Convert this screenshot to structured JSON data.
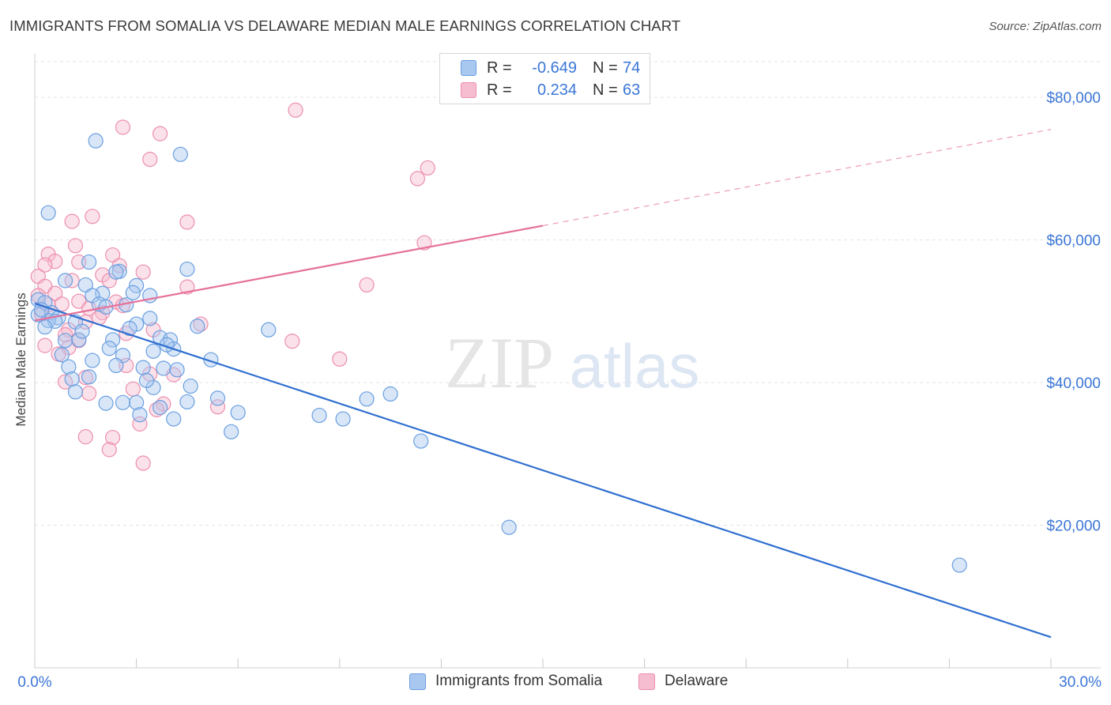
{
  "title": "IMMIGRANTS FROM SOMALIA VS DELAWARE MEDIAN MALE EARNINGS CORRELATION CHART",
  "source": "Source: ZipAtlas.com",
  "watermark": {
    "zip": "ZIP",
    "atlas": "atlas"
  },
  "colors": {
    "blue_fill": "#a9c8f0",
    "blue_stroke": "#6a9fe0",
    "blue_line": "#2f6fd0",
    "pink_fill": "#f6bccf",
    "pink_stroke": "#ec8fae",
    "pink_line": "#e5709a",
    "axis_label": "#3b76d6",
    "grid": "#e3e3e3"
  },
  "legend": {
    "rows": [
      {
        "r_label": "R =",
        "r_value": "-0.649",
        "n_label": "N =",
        "n_value": "74",
        "series": "blue"
      },
      {
        "r_label": "R =",
        "r_value": "0.234",
        "n_label": "N =",
        "n_value": "63",
        "series": "pink"
      }
    ]
  },
  "bottom_legend": {
    "blue": "Immigrants from Somalia",
    "pink": "Delaware"
  },
  "chart_data": {
    "type": "scatter",
    "title": "IMMIGRANTS FROM SOMALIA VS DELAWARE MEDIAN MALE EARNINGS CORRELATION CHART",
    "xlabel": "",
    "ylabel": "Median Male Earnings",
    "xlim": [
      0,
      30
    ],
    "ylim": [
      0,
      85000
    ],
    "x_tick_labels": [
      "0.0%",
      "30.0%"
    ],
    "y_ticks": [
      20000,
      40000,
      60000,
      80000
    ],
    "y_tick_labels": [
      "$20,000",
      "$40,000",
      "$60,000",
      "$80,000"
    ],
    "grid": true,
    "legend_position": "top-center",
    "series": [
      {
        "name": "Immigrants from Somalia",
        "color": "blue",
        "R": -0.649,
        "N": 74,
        "trend": {
          "x0": 0,
          "y0": 51100,
          "x1": 30,
          "y1": 4300
        },
        "points": [
          [
            1.8,
            73900
          ],
          [
            4.3,
            72000
          ],
          [
            0.4,
            63800
          ],
          [
            4.5,
            55900
          ],
          [
            1.6,
            56900
          ],
          [
            2.5,
            55600
          ],
          [
            2.4,
            55500
          ],
          [
            1.5,
            53700
          ],
          [
            3.0,
            53600
          ],
          [
            0.9,
            54300
          ],
          [
            2.0,
            52500
          ],
          [
            1.7,
            52200
          ],
          [
            2.9,
            52600
          ],
          [
            3.4,
            52200
          ],
          [
            0.1,
            51600
          ],
          [
            0.3,
            51200
          ],
          [
            1.9,
            51000
          ],
          [
            2.1,
            50600
          ],
          [
            0.5,
            49800
          ],
          [
            0.7,
            49100
          ],
          [
            0.4,
            48700
          ],
          [
            1.2,
            48500
          ],
          [
            3.0,
            48200
          ],
          [
            3.4,
            49000
          ],
          [
            4.8,
            47900
          ],
          [
            6.9,
            47400
          ],
          [
            0.1,
            49500
          ],
          [
            1.3,
            46000
          ],
          [
            0.9,
            45900
          ],
          [
            2.3,
            46000
          ],
          [
            3.7,
            46300
          ],
          [
            4.0,
            46000
          ],
          [
            2.2,
            44800
          ],
          [
            3.5,
            44400
          ],
          [
            4.1,
            44700
          ],
          [
            2.6,
            43800
          ],
          [
            1.7,
            43100
          ],
          [
            5.2,
            43200
          ],
          [
            1.0,
            42200
          ],
          [
            3.2,
            42100
          ],
          [
            3.8,
            42000
          ],
          [
            4.2,
            41800
          ],
          [
            1.1,
            40500
          ],
          [
            3.5,
            39300
          ],
          [
            3.0,
            37200
          ],
          [
            2.1,
            37100
          ],
          [
            2.6,
            37200
          ],
          [
            4.5,
            37300
          ],
          [
            5.4,
            37800
          ],
          [
            3.7,
            36500
          ],
          [
            3.1,
            35500
          ],
          [
            6.0,
            35800
          ],
          [
            4.1,
            34900
          ],
          [
            8.4,
            35400
          ],
          [
            9.1,
            34900
          ],
          [
            5.8,
            33100
          ],
          [
            9.8,
            37700
          ],
          [
            10.5,
            38400
          ],
          [
            11.4,
            31800
          ],
          [
            14.0,
            19700
          ],
          [
            27.3,
            14400
          ],
          [
            0.2,
            50200
          ],
          [
            0.6,
            48600
          ],
          [
            1.4,
            47200
          ],
          [
            2.8,
            47600
          ],
          [
            3.9,
            45300
          ],
          [
            0.8,
            43900
          ],
          [
            2.4,
            42400
          ],
          [
            1.6,
            40800
          ],
          [
            3.3,
            40300
          ],
          [
            0.3,
            47800
          ],
          [
            2.7,
            50900
          ],
          [
            4.6,
            39500
          ],
          [
            1.2,
            38700
          ]
        ]
      },
      {
        "name": "Delaware",
        "color": "pink",
        "R": 0.234,
        "N": 63,
        "trend": {
          "x0": 0,
          "y0": 48700,
          "x1": 15,
          "y1": 62000,
          "dashed_to": {
            "x1": 30,
            "y1": 75500
          }
        },
        "points": [
          [
            7.7,
            78200
          ],
          [
            2.6,
            75800
          ],
          [
            3.7,
            74900
          ],
          [
            3.4,
            71300
          ],
          [
            11.3,
            68600
          ],
          [
            11.6,
            70100
          ],
          [
            1.7,
            63300
          ],
          [
            1.1,
            62600
          ],
          [
            4.5,
            62500
          ],
          [
            1.2,
            59200
          ],
          [
            11.5,
            59600
          ],
          [
            0.4,
            58000
          ],
          [
            2.3,
            57900
          ],
          [
            0.6,
            57000
          ],
          [
            1.3,
            56900
          ],
          [
            0.3,
            56500
          ],
          [
            2.5,
            56400
          ],
          [
            3.2,
            55500
          ],
          [
            2.0,
            55100
          ],
          [
            0.1,
            54900
          ],
          [
            1.1,
            54300
          ],
          [
            2.2,
            54300
          ],
          [
            0.3,
            53500
          ],
          [
            4.5,
            53400
          ],
          [
            9.8,
            53700
          ],
          [
            0.6,
            52500
          ],
          [
            0.1,
            52200
          ],
          [
            1.3,
            51400
          ],
          [
            2.4,
            51300
          ],
          [
            0.8,
            51000
          ],
          [
            2.6,
            50800
          ],
          [
            1.6,
            50400
          ],
          [
            2.0,
            49800
          ],
          [
            0.2,
            49600
          ],
          [
            1.9,
            49100
          ],
          [
            1.5,
            48500
          ],
          [
            4.9,
            48200
          ],
          [
            1.0,
            47400
          ],
          [
            3.5,
            47400
          ],
          [
            2.7,
            46900
          ],
          [
            0.9,
            46700
          ],
          [
            1.3,
            45900
          ],
          [
            7.6,
            45800
          ],
          [
            0.3,
            45200
          ],
          [
            1.0,
            44900
          ],
          [
            0.7,
            44000
          ],
          [
            9.0,
            43300
          ],
          [
            2.7,
            42400
          ],
          [
            3.4,
            41200
          ],
          [
            4.1,
            41100
          ],
          [
            1.5,
            40700
          ],
          [
            0.9,
            40100
          ],
          [
            2.9,
            39100
          ],
          [
            1.6,
            38500
          ],
          [
            3.8,
            37000
          ],
          [
            5.4,
            36600
          ],
          [
            3.6,
            36200
          ],
          [
            3.1,
            34200
          ],
          [
            2.3,
            32300
          ],
          [
            1.5,
            32400
          ],
          [
            2.2,
            30600
          ],
          [
            3.2,
            28700
          ],
          [
            0.4,
            50900
          ]
        ]
      }
    ]
  }
}
